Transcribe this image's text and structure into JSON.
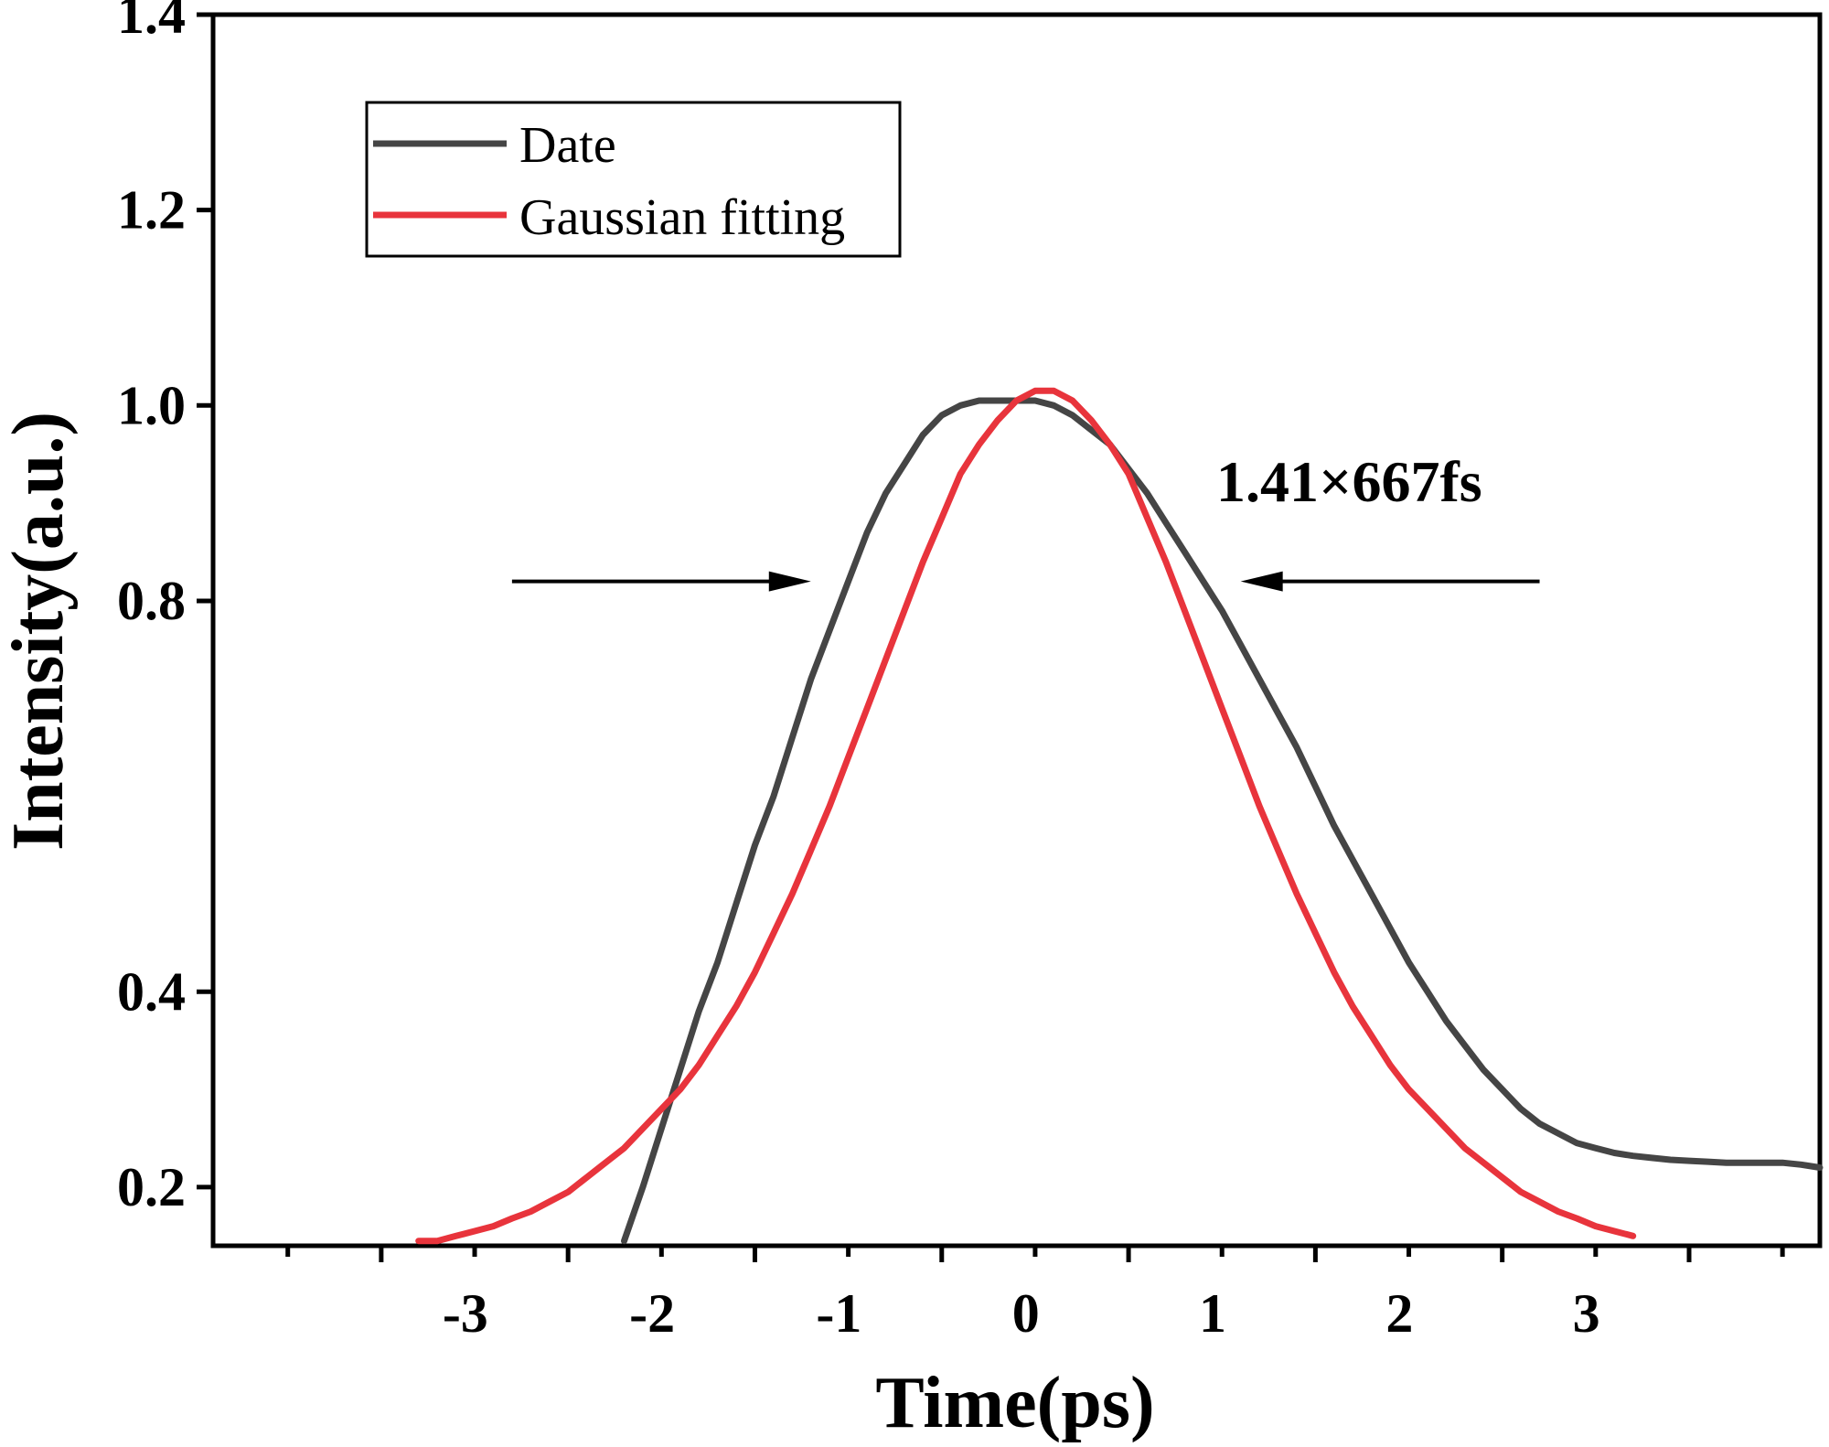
{
  "chart_data": {
    "type": "line",
    "title": "",
    "xlabel": "Time(ps)",
    "ylabel": "Intensity(a.u.)",
    "xlim": [
      -4.4,
      4.2
    ],
    "ylim": [
      0.14,
      1.4
    ],
    "x_ticks": [
      -3,
      -2,
      -1,
      0,
      1,
      2,
      3
    ],
    "x_tick_labels": [
      "-3",
      "-2",
      "-1",
      "0",
      "1",
      "2",
      "3"
    ],
    "y_ticks": [
      0.2,
      0.4,
      0.8,
      1.0,
      1.2,
      1.4
    ],
    "y_tick_labels": [
      "0.2",
      "0.4",
      "0.8",
      "1.0",
      "1.2",
      "1.4"
    ],
    "grid": false,
    "legend_position": "top-left",
    "annotation": "1.41×667fs",
    "series": [
      {
        "name": "Date",
        "color": "#454545",
        "x": [
          -2.2,
          -2.1,
          -2.0,
          -1.9,
          -1.8,
          -1.7,
          -1.6,
          -1.5,
          -1.4,
          -1.3,
          -1.2,
          -1.1,
          -1.0,
          -0.9,
          -0.8,
          -0.7,
          -0.6,
          -0.5,
          -0.4,
          -0.3,
          -0.2,
          -0.1,
          0.0,
          0.1,
          0.2,
          0.3,
          0.4,
          0.5,
          0.6,
          0.7,
          0.8,
          0.9,
          1.0,
          1.1,
          1.2,
          1.3,
          1.4,
          1.5,
          1.6,
          1.7,
          1.8,
          1.9,
          2.0,
          2.1,
          2.2,
          2.3,
          2.4,
          2.5,
          2.6,
          2.7,
          2.8,
          2.9,
          3.0,
          3.1,
          3.2,
          3.3,
          3.4,
          3.5,
          3.6,
          3.7,
          3.8,
          3.9,
          4.0,
          4.1,
          4.2
        ],
        "values": [
          0.145,
          0.2,
          0.26,
          0.32,
          0.38,
          0.43,
          0.49,
          0.55,
          0.6,
          0.66,
          0.72,
          0.77,
          0.82,
          0.87,
          0.91,
          0.94,
          0.97,
          0.99,
          1.0,
          1.005,
          1.005,
          1.005,
          1.005,
          1.0,
          0.99,
          0.975,
          0.96,
          0.935,
          0.91,
          0.88,
          0.85,
          0.82,
          0.79,
          0.755,
          0.72,
          0.685,
          0.65,
          0.61,
          0.57,
          0.535,
          0.5,
          0.465,
          0.43,
          0.4,
          0.37,
          0.345,
          0.32,
          0.3,
          0.28,
          0.265,
          0.255,
          0.245,
          0.24,
          0.235,
          0.232,
          0.23,
          0.228,
          0.227,
          0.226,
          0.225,
          0.225,
          0.225,
          0.225,
          0.223,
          0.22
        ]
      },
      {
        "name": "Gaussian fitting",
        "color": "#e8343c",
        "x": [
          -3.3,
          -3.2,
          -3.1,
          -3.0,
          -2.9,
          -2.8,
          -2.7,
          -2.6,
          -2.5,
          -2.4,
          -2.3,
          -2.2,
          -2.1,
          -2.0,
          -1.9,
          -1.8,
          -1.7,
          -1.6,
          -1.5,
          -1.4,
          -1.3,
          -1.2,
          -1.1,
          -1.0,
          -0.9,
          -0.8,
          -0.7,
          -0.6,
          -0.5,
          -0.4,
          -0.3,
          -0.2,
          -0.1,
          0.0,
          0.1,
          0.2,
          0.3,
          0.4,
          0.5,
          0.6,
          0.7,
          0.8,
          0.9,
          1.0,
          1.1,
          1.2,
          1.3,
          1.4,
          1.5,
          1.6,
          1.7,
          1.8,
          1.9,
          2.0,
          2.1,
          2.2,
          2.3,
          2.4,
          2.5,
          2.6,
          2.7,
          2.8,
          2.9,
          3.0,
          3.1,
          3.2
        ],
        "values": [
          0.145,
          0.145,
          0.15,
          0.155,
          0.16,
          0.168,
          0.175,
          0.185,
          0.195,
          0.21,
          0.225,
          0.24,
          0.26,
          0.28,
          0.3,
          0.325,
          0.355,
          0.385,
          0.42,
          0.46,
          0.5,
          0.545,
          0.59,
          0.64,
          0.69,
          0.74,
          0.79,
          0.84,
          0.885,
          0.93,
          0.96,
          0.985,
          1.005,
          1.015,
          1.015,
          1.005,
          0.985,
          0.96,
          0.93,
          0.885,
          0.84,
          0.79,
          0.74,
          0.69,
          0.64,
          0.59,
          0.545,
          0.5,
          0.46,
          0.42,
          0.385,
          0.355,
          0.325,
          0.3,
          0.28,
          0.26,
          0.24,
          0.225,
          0.21,
          0.195,
          0.185,
          0.175,
          0.168,
          0.16,
          0.155,
          0.15
        ]
      }
    ],
    "arrows": [
      {
        "name": "left-fwhm-arrow",
        "from": [
          -2.8,
          0.82
        ],
        "to": [
          -1.2,
          0.82
        ]
      },
      {
        "name": "right-fwhm-arrow",
        "from": [
          2.7,
          0.82
        ],
        "to": [
          1.1,
          0.82
        ]
      }
    ]
  }
}
